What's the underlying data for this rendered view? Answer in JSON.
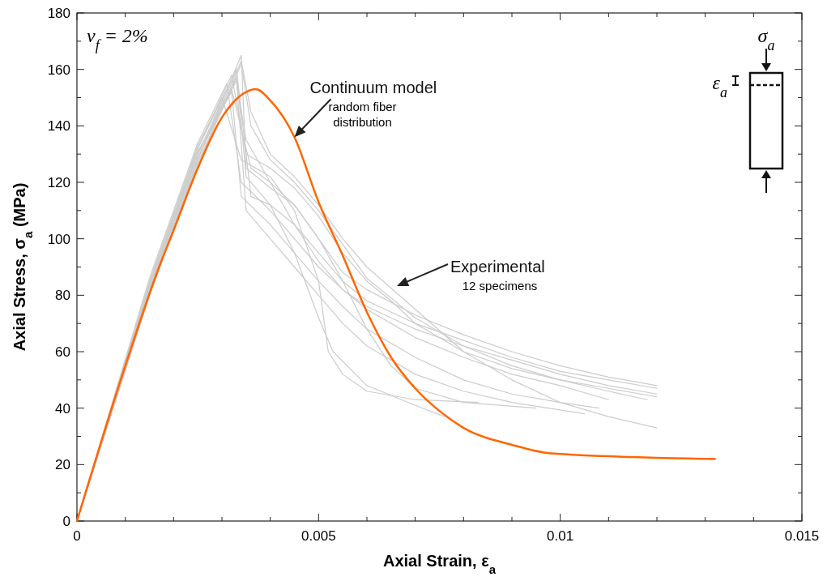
{
  "chart_data": {
    "type": "line",
    "xlabel": "Axial Strain, ε$_{a}$",
    "ylabel": "Axial Stress, σ$_{a}$ (MPa)",
    "xlim": [
      0,
      0.015
    ],
    "ylim": [
      0,
      180
    ],
    "xticks": [
      0,
      {
        "value": 0.001,
        "label": null
      },
      {
        "value": 0.002,
        "label": null
      },
      {
        "value": 0.003,
        "label": null
      },
      {
        "value": 0.004,
        "label": null
      },
      {
        "value": 0.005,
        "label": "0.005"
      },
      {
        "value": 0.006,
        "label": null
      },
      {
        "value": 0.007,
        "label": null
      },
      {
        "value": 0.008,
        "label": null
      },
      {
        "value": 0.009,
        "label": null
      },
      {
        "value": 0.01,
        "label": "0.01"
      },
      {
        "value": 0.011,
        "label": null
      },
      {
        "value": 0.012,
        "label": null
      },
      {
        "value": 0.013,
        "label": null
      },
      {
        "value": 0.014,
        "label": null
      },
      {
        "value": 0.015,
        "label": "0.015"
      }
    ],
    "yticks": [
      0,
      {
        "value": 10,
        "label": null
      },
      20,
      {
        "value": 30,
        "label": null
      },
      40,
      {
        "value": 50,
        "label": null
      },
      60,
      {
        "value": 70,
        "label": null
      },
      80,
      {
        "value": 90,
        "label": null
      },
      100,
      {
        "value": 110,
        "label": null
      },
      120,
      {
        "value": 130,
        "label": null
      },
      140,
      {
        "value": 150,
        "label": null
      },
      160,
      {
        "value": 170,
        "label": null
      },
      180
    ],
    "grid": false,
    "marker": "none",
    "line_style": "solid",
    "annotations": [
      "v$_{f}$ = 2%",
      {
        "text": "Continuum model",
        "x": 0.0045,
        "y": 136
      },
      "random fiber distribution",
      "Experimental",
      "12 specimens",
      "σ$_{a}$",
      "ε$_{a}$"
    ],
    "series": [
      {
        "color": "#cccccc",
        "x": [
          0,
          0.0015,
          0.0025,
          0.0034,
          0.0035,
          0.004,
          0.0045,
          0.005,
          0.0055,
          0.006,
          0.007,
          0.008,
          0.009,
          0.01,
          0.011,
          0.012
        ],
        "values": [
          0,
          80,
          128,
          165,
          125,
          118,
          112,
          100,
          88,
          82,
          73,
          66,
          60,
          55,
          51,
          48
        ]
      },
      {
        "color": "#cccccc",
        "x": [
          0,
          0.0015,
          0.0025,
          0.0033,
          0.0036,
          0.004,
          0.0045,
          0.005,
          0.0055,
          0.006,
          0.007,
          0.008,
          0.009,
          0.01,
          0.011,
          0.012
        ],
        "values": [
          0,
          82,
          130,
          160,
          115,
          112,
          105,
          95,
          85,
          78,
          70,
          64,
          58,
          53,
          50,
          47
        ]
      },
      {
        "color": "#cccccc",
        "x": [
          0,
          0.0015,
          0.0025,
          0.0032,
          0.0035,
          0.004,
          0.0045,
          0.005,
          0.0055,
          0.006,
          0.0065,
          0.007,
          0.008,
          0.009,
          0.01,
          0.011,
          0.012
        ],
        "values": [
          0,
          84,
          132,
          158,
          130,
          125,
          118,
          108,
          95,
          85,
          78,
          70,
          60,
          54,
          50,
          47,
          44
        ]
      },
      {
        "color": "#cccccc",
        "x": [
          0,
          0.0015,
          0.0025,
          0.0034,
          0.0036,
          0.004,
          0.0045,
          0.005,
          0.0055,
          0.006,
          0.007,
          0.008,
          0.009,
          0.01,
          0.011,
          0.0118
        ],
        "values": [
          0,
          80,
          126,
          162,
          140,
          128,
          120,
          110,
          98,
          86,
          72,
          62,
          55,
          50,
          46,
          43
        ]
      },
      {
        "color": "#cccccc",
        "x": [
          0,
          0.0015,
          0.0025,
          0.0031,
          0.0034,
          0.004,
          0.0045,
          0.005,
          0.0055,
          0.006,
          0.007,
          0.008,
          0.009,
          0.01,
          0.011
        ],
        "values": [
          0,
          86,
          134,
          155,
          120,
          110,
          100,
          90,
          82,
          75,
          65,
          58,
          52,
          48,
          43
        ]
      },
      {
        "color": "#cccccc",
        "x": [
          0,
          0.0015,
          0.0025,
          0.0033,
          0.0035,
          0.004,
          0.0045,
          0.005,
          0.0055,
          0.006,
          0.007,
          0.008,
          0.009,
          0.0105
        ],
        "values": [
          0,
          83,
          130,
          157,
          110,
          100,
          90,
          80,
          70,
          62,
          52,
          46,
          42,
          38
        ]
      },
      {
        "color": "#cccccc",
        "x": [
          0,
          0.0015,
          0.0025,
          0.003,
          0.0034,
          0.004,
          0.0045,
          0.005,
          0.0052,
          0.0055,
          0.006,
          0.007,
          0.0083
        ],
        "values": [
          0,
          85,
          133,
          150,
          128,
          122,
          110,
          85,
          60,
          52,
          46,
          43,
          42
        ]
      },
      {
        "color": "#cccccc",
        "x": [
          0,
          0.0015,
          0.0025,
          0.0033,
          0.0035,
          0.004,
          0.0045,
          0.005,
          0.0053,
          0.006,
          0.007,
          0.0076
        ],
        "values": [
          0,
          84,
          132,
          160,
          122,
          112,
          95,
          72,
          60,
          48,
          41,
          37
        ]
      },
      {
        "color": "#cccccc",
        "x": [
          0,
          0.0015,
          0.0025,
          0.0032,
          0.0036,
          0.004,
          0.0045,
          0.005,
          0.0055,
          0.006,
          0.0065,
          0.007,
          0.008,
          0.0095
        ],
        "values": [
          0,
          80,
          127,
          153,
          125,
          120,
          112,
          100,
          85,
          68,
          55,
          47,
          42,
          40
        ]
      },
      {
        "color": "#cccccc",
        "x": [
          0,
          0.0015,
          0.0025,
          0.0034,
          0.0036,
          0.004,
          0.0045,
          0.005,
          0.0055,
          0.006,
          0.007,
          0.008,
          0.009,
          0.01,
          0.011,
          0.012
        ],
        "values": [
          0,
          81,
          128,
          163,
          145,
          130,
          122,
          112,
          100,
          90,
          75,
          60,
          50,
          42,
          37,
          33
        ]
      },
      {
        "color": "#cccccc",
        "x": [
          0,
          0.0015,
          0.0025,
          0.0033,
          0.0035,
          0.004,
          0.0045,
          0.005,
          0.0055,
          0.006,
          0.007,
          0.008,
          0.009,
          0.01,
          0.011,
          0.012
        ],
        "values": [
          0,
          82,
          129,
          156,
          135,
          120,
          105,
          92,
          82,
          76,
          68,
          62,
          57,
          52,
          48,
          45
        ]
      },
      {
        "color": "#cccccc",
        "x": [
          0,
          0.0015,
          0.0025,
          0.0032,
          0.0034,
          0.004,
          0.0045,
          0.005,
          0.0055,
          0.006,
          0.007,
          0.008,
          0.009,
          0.01,
          0.0108
        ],
        "values": [
          0,
          83,
          131,
          152,
          115,
          105,
          95,
          85,
          76,
          68,
          58,
          50,
          45,
          42,
          40
        ]
      },
      {
        "color": "#ff6600",
        "x": [
          0,
          0.001,
          0.0017,
          0.002,
          0.0025,
          0.003,
          0.0035,
          0.0037,
          0.004,
          0.0045,
          0.005,
          0.0055,
          0.006,
          0.0065,
          0.007,
          0.0075,
          0.008,
          0.009,
          0.0098,
          0.0132
        ],
        "values": [
          0,
          55,
          90,
          103,
          125,
          143,
          152,
          153,
          149,
          136,
          113,
          94,
          74,
          58,
          47,
          39,
          33,
          27,
          24,
          22
        ]
      }
    ]
  }
}
